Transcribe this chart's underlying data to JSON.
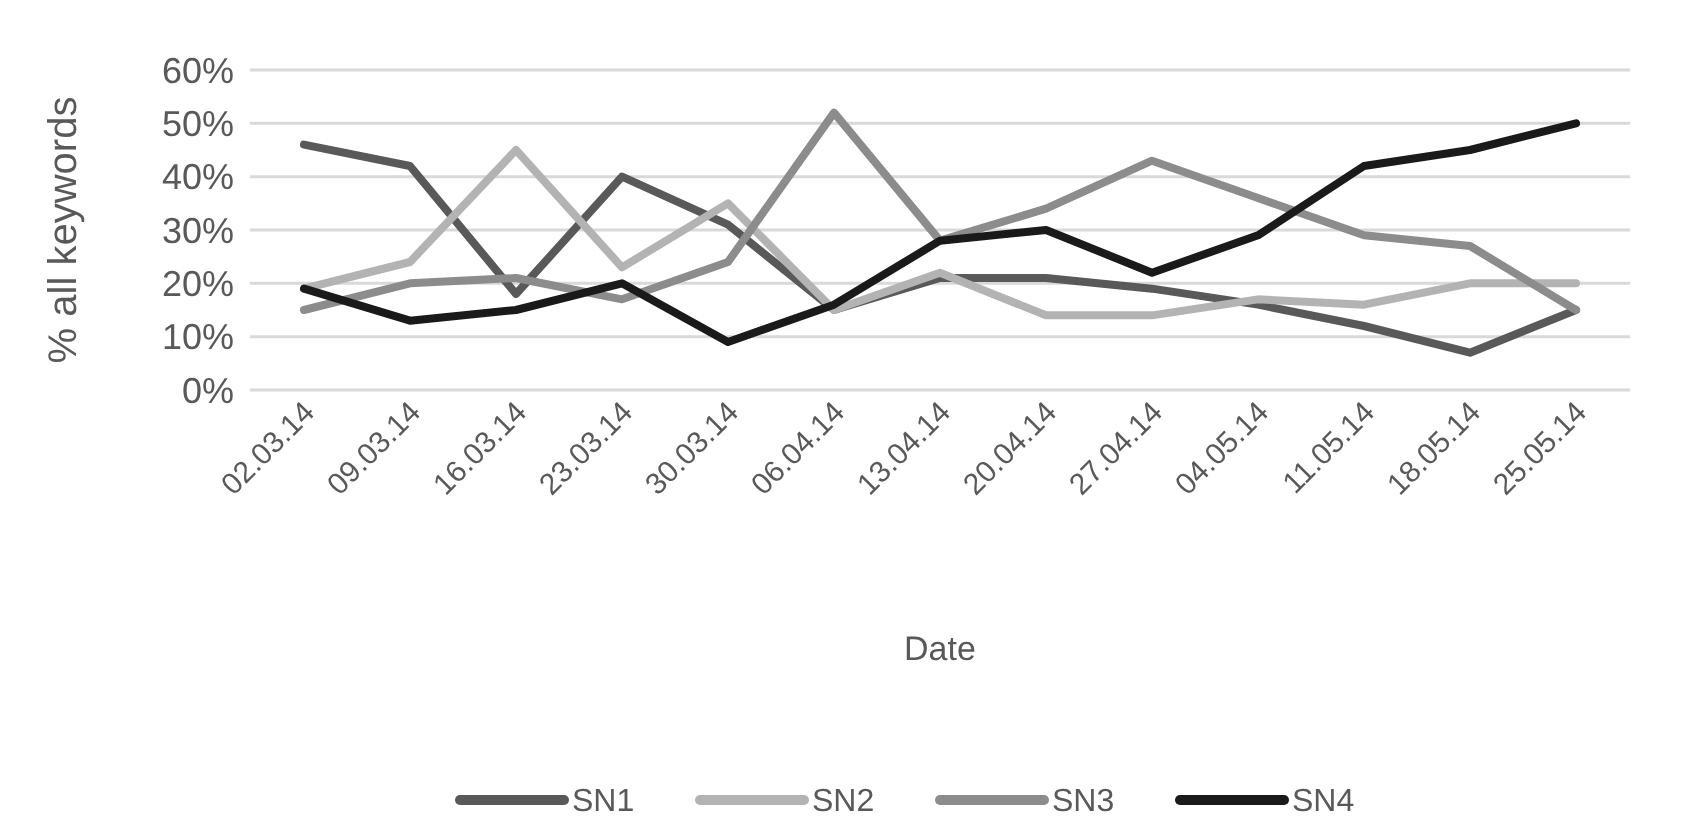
{
  "chart_data": {
    "type": "line",
    "xlabel": "Date",
    "ylabel": "% all keywords",
    "categories": [
      "02.03.14",
      "09.03.14",
      "16.03.14",
      "23.03.14",
      "30.03.14",
      "06.04.14",
      "13.04.14",
      "20.04.14",
      "27.04.14",
      "04.05.14",
      "11.05.14",
      "18.05.14",
      "25.05.14"
    ],
    "series": [
      {
        "name": "SN1",
        "color": "#595959",
        "values": [
          46,
          42,
          18,
          40,
          31,
          15,
          21,
          21,
          19,
          16,
          12,
          7,
          15
        ]
      },
      {
        "name": "SN2",
        "color": "#b3b3b3",
        "values": [
          19,
          24,
          45,
          23,
          35,
          15,
          22,
          14,
          14,
          17,
          16,
          20,
          20
        ]
      },
      {
        "name": "SN3",
        "color": "#8c8c8c",
        "values": [
          15,
          20,
          21,
          17,
          24,
          52,
          28,
          34,
          43,
          36,
          29,
          27,
          15
        ]
      },
      {
        "name": "SN4",
        "color": "#1a1a1a",
        "values": [
          19,
          13,
          15,
          20,
          9,
          16,
          28,
          30,
          22,
          29,
          42,
          45,
          50
        ]
      }
    ],
    "ylim": [
      0,
      60
    ],
    "yticks": [
      {
        "value": 0,
        "label": "0%"
      },
      {
        "value": 10,
        "label": "10%"
      },
      {
        "value": 20,
        "label": "20%"
      },
      {
        "value": 30,
        "label": "30%"
      },
      {
        "value": 40,
        "label": "40%"
      },
      {
        "value": 50,
        "label": "50%"
      },
      {
        "value": 60,
        "label": "60%"
      }
    ],
    "grid": "y",
    "legend": "bottom",
    "marker": "none",
    "line_style": "solid"
  }
}
